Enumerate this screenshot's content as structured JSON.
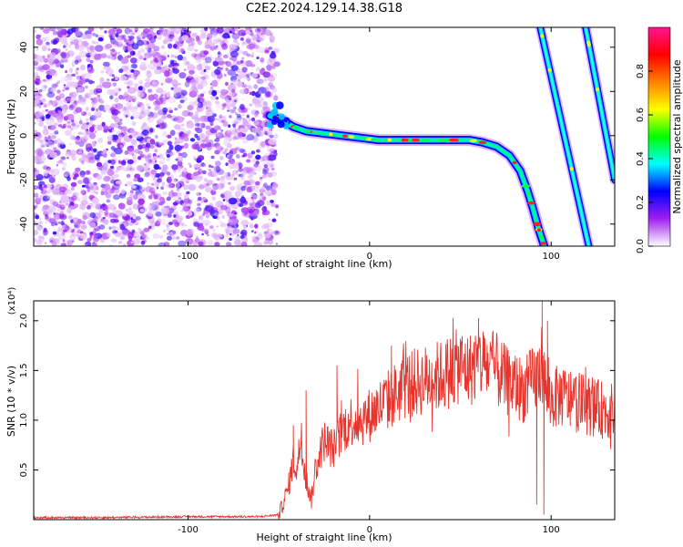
{
  "title": "C2E2.2024.129.14.38.G18",
  "chart_data": [
    {
      "type": "heatmap",
      "title": "C2E2.2024.129.14.38.G18",
      "xlabel": "Height of straight line (km)",
      "ylabel": "Frequency (Hz)",
      "xlim": [
        -185,
        135
      ],
      "ylim": [
        -50,
        49
      ],
      "x_ticks": [
        -100,
        0,
        100
      ],
      "x_tick_labels": [
        "-100",
        "0",
        "100"
      ],
      "y_ticks": [
        -40,
        -20,
        0,
        20,
        40
      ],
      "y_tick_labels": [
        "-40",
        "-20",
        "0",
        "20",
        "40"
      ],
      "colorbar": {
        "label": "Normalized spectral amplitude",
        "range": [
          0,
          1
        ],
        "ticks": [
          0.0,
          0.2,
          0.4,
          0.6,
          0.8
        ],
        "tick_labels": [
          "0.0",
          "0.2",
          "0.4",
          "0.6",
          "0.8"
        ],
        "colors": [
          "#ffffff",
          "#a020f0",
          "#0000ff",
          "#00ffff",
          "#00ff00",
          "#ffff00",
          "#ff8000",
          "#ff0000",
          "#ff1493"
        ]
      },
      "noise_region": {
        "x_range": [
          -185,
          -53
        ],
        "y_range": [
          -50,
          49
        ],
        "amplitude": 0.12
      },
      "traces": [
        {
          "name": "main",
          "x": [
            -55,
            -48,
            -42,
            -35,
            -25,
            -15,
            -5,
            5,
            20,
            40,
            55,
            62,
            70,
            77,
            83,
            87,
            90,
            93,
            97
          ],
          "y": [
            9,
            7,
            4,
            2,
            1,
            0,
            -1,
            -2,
            -2,
            -2,
            -2,
            -3,
            -5,
            -9,
            -16,
            -25,
            -33,
            -42,
            -52
          ]
        },
        {
          "name": "streak-1",
          "x": [
            94,
            121
          ],
          "y": [
            49,
            -51
          ]
        },
        {
          "name": "streak-2",
          "x": [
            119,
            135
          ],
          "y": [
            49,
            -20
          ]
        }
      ]
    },
    {
      "type": "line",
      "xlabel": "Height of straight line (km)",
      "ylabel": "SNR (10 * v/v)",
      "y_scale_label": "(x10⁴)",
      "xlim": [
        -185,
        135
      ],
      "ylim": [
        0,
        2.2
      ],
      "x_ticks": [
        -100,
        0,
        100
      ],
      "x_tick_labels": [
        "-100",
        "0",
        "100"
      ],
      "y_ticks": [
        0.5,
        1.0,
        1.5,
        2.0
      ],
      "y_tick_labels": [
        "0.5",
        "1.0",
        "1.5",
        "2.0"
      ],
      "series": [
        {
          "color": "#e8342c",
          "x": [
            -185,
            -150,
            -100,
            -60,
            -50,
            -45,
            -42,
            -40,
            -38,
            -35,
            -32,
            -30,
            -25,
            -20,
            -15,
            -10,
            -5,
            0,
            10,
            20,
            30,
            40,
            50,
            55,
            60,
            65,
            70,
            75,
            80,
            85,
            90,
            93,
            95,
            97,
            100,
            105,
            110,
            115,
            120,
            125,
            130,
            135
          ],
          "y": [
            0.02,
            0.02,
            0.03,
            0.03,
            0.05,
            0.3,
            0.6,
            0.5,
            0.8,
            0.4,
            0.2,
            0.5,
            0.8,
            0.7,
            0.9,
            1.0,
            1.0,
            1.05,
            1.2,
            1.35,
            1.4,
            1.45,
            1.55,
            1.5,
            1.6,
            1.55,
            1.5,
            1.4,
            1.35,
            1.3,
            1.4,
            1.45,
            1.6,
            1.3,
            1.2,
            1.25,
            1.2,
            1.18,
            1.15,
            1.12,
            1.1,
            1.08
          ],
          "spikes": [
            {
              "x": -42,
              "y": 0.95
            },
            {
              "x": -35,
              "y": 1.3
            },
            {
              "x": -18,
              "y": 1.55
            },
            {
              "x": 12,
              "y": 1.75
            },
            {
              "x": 60,
              "y": 1.95
            },
            {
              "x": 63,
              "y": 1.85
            },
            {
              "x": 95,
              "y": 2.2
            },
            {
              "x": 96,
              "y": 0.05
            },
            {
              "x": 92,
              "y": 0.15
            },
            {
              "x": 98,
              "y": 2.0
            }
          ]
        }
      ]
    }
  ]
}
